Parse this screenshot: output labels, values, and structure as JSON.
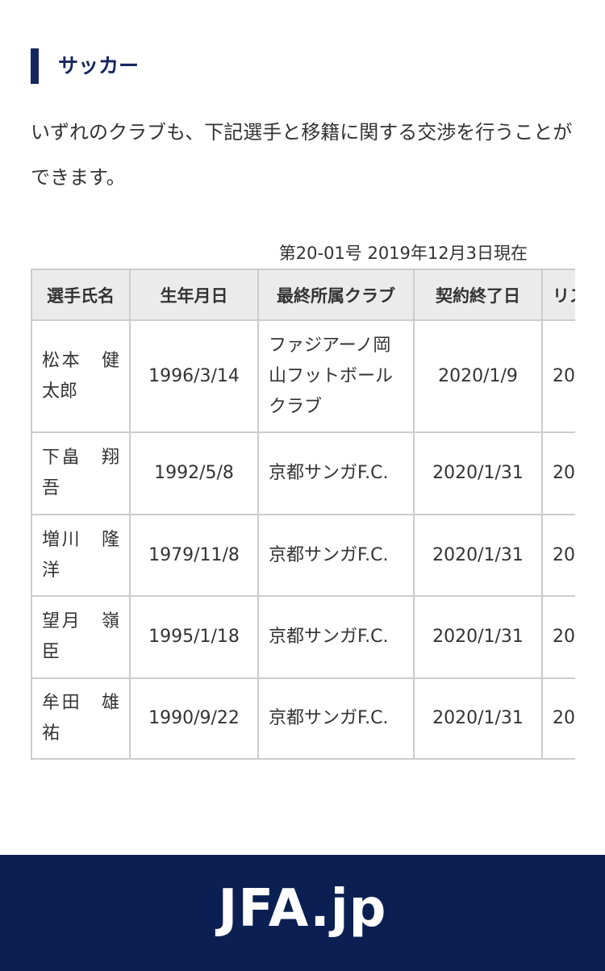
{
  "section_title": "サッカー",
  "lead": "いずれのクラブも、下記選手と移籍に関する交渉を行うことができます。",
  "as_of": "第20-01号 2019年12月3日現在",
  "table": {
    "headers": [
      "選手氏名",
      "生年月日",
      "最終所属クラブ",
      "契約終了日",
      "リス"
    ],
    "rows": [
      [
        "松本　健太郎",
        "1996/3/14",
        "ファジアーノ岡山フットボールクラブ",
        "2020/1/9",
        "20"
      ],
      [
        "下畠　翔吾",
        "1992/5/8",
        "京都サンガF.C.",
        "2020/1/31",
        "20"
      ],
      [
        "増川　隆洋",
        "1979/11/8",
        "京都サンガF.C.",
        "2020/1/31",
        "20"
      ],
      [
        "望月　嶺臣",
        "1995/1/18",
        "京都サンガF.C.",
        "2020/1/31",
        "20"
      ],
      [
        "牟田　雄祐",
        "1990/9/22",
        "京都サンガF.C.",
        "2020/1/31",
        "20"
      ]
    ]
  },
  "footer": {
    "logo": "JFA.jp"
  },
  "colors": {
    "accent": "#16275f",
    "footer_bg": "#0b1f52",
    "header_bg": "#ebebeb"
  }
}
